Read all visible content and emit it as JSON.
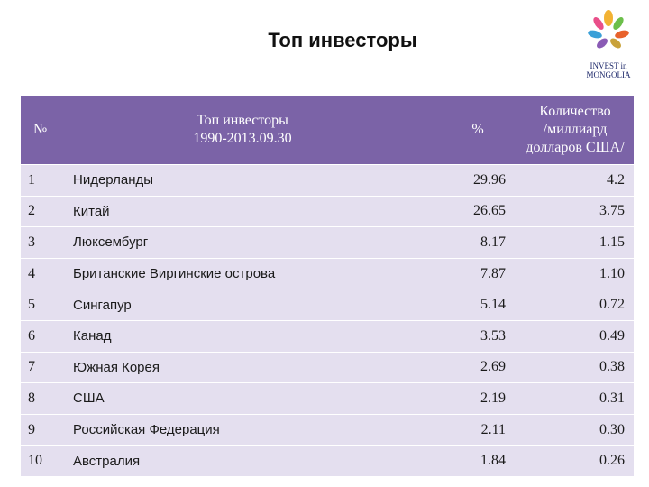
{
  "page": {
    "title": "Топ инвесторы",
    "logo": {
      "line1": "INVEST in",
      "line2": "MONGOLIA"
    }
  },
  "table": {
    "headers": {
      "num": "№",
      "name_line1": "Топ инвесторы",
      "name_line2": "1990-2013.09.30",
      "pct": "%",
      "amount_line1": "Количество",
      "amount_line2": "/миллиард",
      "amount_line3": "долларов США/"
    },
    "rows": [
      {
        "num": "1",
        "name": "Нидерланды",
        "pct": "29.96",
        "amount": "4.2"
      },
      {
        "num": "2",
        "name": "Китай",
        "pct": "26.65",
        "amount": "3.75"
      },
      {
        "num": "3",
        "name": "Люксембург",
        "pct": "8.17",
        "amount": "1.15"
      },
      {
        "num": "4",
        "name": "Британские Виргинские острова",
        "pct": "7.87",
        "amount": "1.10"
      },
      {
        "num": "5",
        "name": "Сингапур",
        "pct": "5.14",
        "amount": "0.72"
      },
      {
        "num": "6",
        "name": "Канад",
        "pct": "3.53",
        "amount": "0.49"
      },
      {
        "num": "7",
        "name": "Южная Корея",
        "pct": "2.69",
        "amount": "0.38"
      },
      {
        "num": "8",
        "name": "США",
        "pct": "2.19",
        "amount": "0.31"
      },
      {
        "num": "9",
        "name": "Российская Федерация",
        "pct": "2.11",
        "amount": "0.30"
      },
      {
        "num": "10",
        "name": "Австралия",
        "pct": "1.84",
        "amount": "0.26"
      }
    ]
  },
  "colors": {
    "header_bg": "#7b63a7",
    "row_bg": "#e4dfef",
    "logo_text": "#1f2a6b"
  }
}
